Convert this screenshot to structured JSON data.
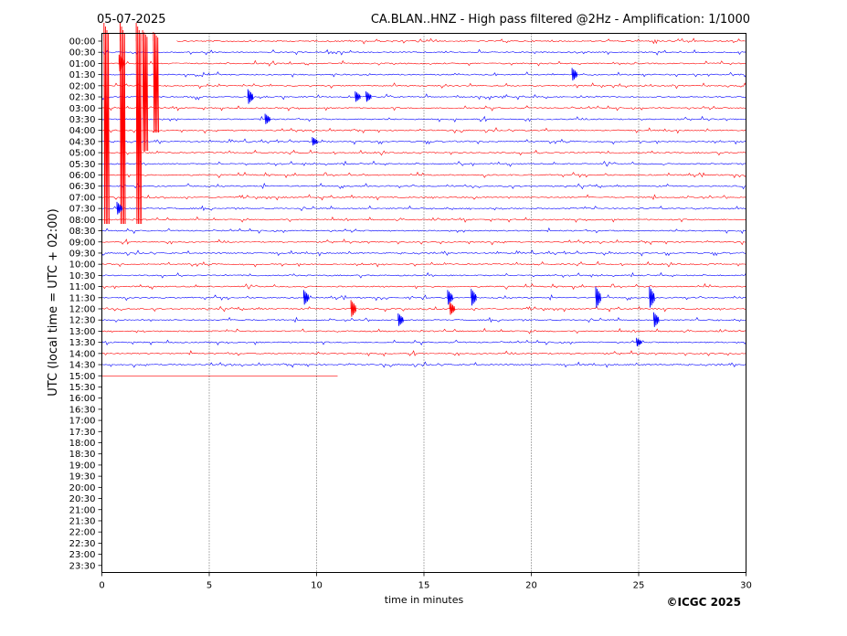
{
  "header": {
    "date": "05-07-2025",
    "title": "CA.BLAN..HNZ - High pass filtered @2Hz - Amplification: 1/1000"
  },
  "footer": {
    "credit": "©ICGC 2025"
  },
  "chart_data": {
    "type": "line",
    "title": "CA.BLAN..HNZ - High pass filtered @2Hz - Amplification: 1/1000",
    "xlabel": "time in minutes",
    "ylabel": "UTC (local time = UTC + 02:00)",
    "xlim": [
      0,
      30
    ],
    "xticks": [
      0,
      5,
      10,
      15,
      20,
      25,
      30
    ],
    "row_labels": [
      "00:00",
      "00:30",
      "01:00",
      "01:30",
      "02:00",
      "02:30",
      "03:00",
      "03:30",
      "04:00",
      "04:30",
      "05:00",
      "05:30",
      "06:00",
      "06:30",
      "07:00",
      "07:30",
      "08:00",
      "08:30",
      "09:00",
      "09:30",
      "10:00",
      "10:30",
      "11:00",
      "11:30",
      "12:00",
      "12:30",
      "13:00",
      "13:30",
      "14:00",
      "14:30",
      "15:00",
      "15:30",
      "16:00",
      "16:30",
      "17:00",
      "17:30",
      "18:00",
      "18:30",
      "19:00",
      "19:30",
      "20:00",
      "20:30",
      "21:00",
      "21:30",
      "22:00",
      "22:30",
      "23:00",
      "23:30"
    ],
    "trace_colors": [
      "#ff0000",
      "#0000ff"
    ],
    "grid": "vertical dotted lines at 5-minute ticks",
    "traces_recorded": 31,
    "last_trace_end_minute": 11,
    "events": [
      {
        "row": 0,
        "minute": 0.1,
        "amp": 1.0
      },
      {
        "row": 0,
        "minute": 0.85,
        "amp": 1.0
      },
      {
        "row": 0,
        "minute": 1.6,
        "amp": 1.0
      },
      {
        "row": 0,
        "minute": 1.9,
        "amp": 0.6
      },
      {
        "row": 0,
        "minute": 2.4,
        "amp": 0.5
      },
      {
        "row": 2,
        "minute": 0.8,
        "amp": 0.8
      },
      {
        "row": 3,
        "minute": 21.9,
        "amp": 0.6
      },
      {
        "row": 5,
        "minute": 6.8,
        "amp": 0.7
      },
      {
        "row": 5,
        "minute": 11.8,
        "amp": 0.5
      },
      {
        "row": 5,
        "minute": 12.3,
        "amp": 0.5
      },
      {
        "row": 7,
        "minute": 7.6,
        "amp": 0.5
      },
      {
        "row": 9,
        "minute": 9.8,
        "amp": 0.4
      },
      {
        "row": 15,
        "minute": 0.7,
        "amp": 0.6
      },
      {
        "row": 23,
        "minute": 9.4,
        "amp": 0.7
      },
      {
        "row": 23,
        "minute": 16.1,
        "amp": 0.7
      },
      {
        "row": 23,
        "minute": 17.2,
        "amp": 0.8
      },
      {
        "row": 23,
        "minute": 23.0,
        "amp": 1.0
      },
      {
        "row": 23,
        "minute": 25.5,
        "amp": 1.0
      },
      {
        "row": 24,
        "minute": 11.6,
        "amp": 0.8
      },
      {
        "row": 24,
        "minute": 16.2,
        "amp": 0.6
      },
      {
        "row": 25,
        "minute": 13.8,
        "amp": 0.6
      },
      {
        "row": 25,
        "minute": 25.7,
        "amp": 0.7
      },
      {
        "row": 27,
        "minute": 24.9,
        "amp": 0.4
      }
    ]
  }
}
